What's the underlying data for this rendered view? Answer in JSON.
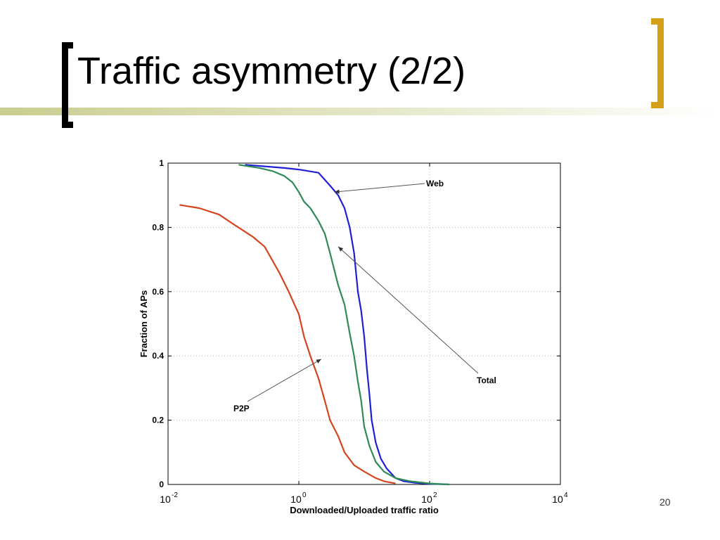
{
  "slide": {
    "title": "Traffic asymmetry (2/2)",
    "page_number": "20",
    "colors": {
      "bar": "#c9cd8f",
      "bracket_left": "#000000",
      "bracket_right": "#d4a017"
    }
  },
  "chart_data": {
    "type": "line",
    "title": "",
    "xlabel": "Downloaded/Uploaded traffic ratio",
    "ylabel": "Fraction of APs",
    "xscale": "log",
    "xlim": [
      0.01,
      10000
    ],
    "ylim": [
      0,
      1
    ],
    "grid": true,
    "x_ticks": [
      {
        "base": "10",
        "exp": "-2"
      },
      {
        "base": "10",
        "exp": "0"
      },
      {
        "base": "10",
        "exp": "2"
      },
      {
        "base": "10",
        "exp": "4"
      }
    ],
    "y_ticks": [
      "0",
      "0.2",
      "0.4",
      "0.6",
      "0.8",
      "1"
    ],
    "series": [
      {
        "name": "Web",
        "color": "#1f1fd6",
        "x": [
          0.15,
          0.3,
          0.6,
          1,
          2,
          3,
          4,
          5,
          6,
          7,
          8,
          9,
          10,
          11,
          12,
          13,
          15,
          18,
          22,
          30,
          40,
          60,
          100,
          200
        ],
        "y": [
          0.995,
          0.99,
          0.985,
          0.98,
          0.97,
          0.93,
          0.9,
          0.86,
          0.8,
          0.72,
          0.6,
          0.54,
          0.46,
          0.36,
          0.28,
          0.2,
          0.13,
          0.08,
          0.05,
          0.02,
          0.01,
          0.005,
          0.002,
          0
        ]
      },
      {
        "name": "Total",
        "color": "#2e8b57",
        "x": [
          0.12,
          0.25,
          0.4,
          0.6,
          0.8,
          1,
          1.2,
          1.5,
          2,
          2.5,
          3,
          4,
          5,
          6,
          7,
          8,
          9,
          10,
          12,
          15,
          20,
          30,
          50,
          100,
          200
        ],
        "y": [
          0.995,
          0.985,
          0.975,
          0.96,
          0.94,
          0.91,
          0.88,
          0.86,
          0.82,
          0.78,
          0.72,
          0.62,
          0.56,
          0.47,
          0.4,
          0.32,
          0.26,
          0.18,
          0.12,
          0.07,
          0.04,
          0.02,
          0.01,
          0.003,
          0
        ]
      },
      {
        "name": "P2P",
        "color": "#d2451e",
        "x": [
          0.015,
          0.03,
          0.06,
          0.1,
          0.2,
          0.3,
          0.5,
          0.7,
          1,
          1.2,
          1.5,
          2,
          2.5,
          3,
          4,
          5,
          7,
          10,
          15,
          20,
          30
        ],
        "y": [
          0.87,
          0.86,
          0.84,
          0.81,
          0.77,
          0.74,
          0.66,
          0.6,
          0.53,
          0.46,
          0.4,
          0.33,
          0.26,
          0.2,
          0.15,
          0.1,
          0.06,
          0.04,
          0.02,
          0.01,
          0.003
        ]
      }
    ],
    "annotations": [
      {
        "text": "Web",
        "target_x": 3.5,
        "target_y": 0.91
      },
      {
        "text": "Total",
        "target_x": 4,
        "target_y": 0.74
      },
      {
        "text": "P2P",
        "target_x": 2.2,
        "target_y": 0.39
      }
    ]
  }
}
